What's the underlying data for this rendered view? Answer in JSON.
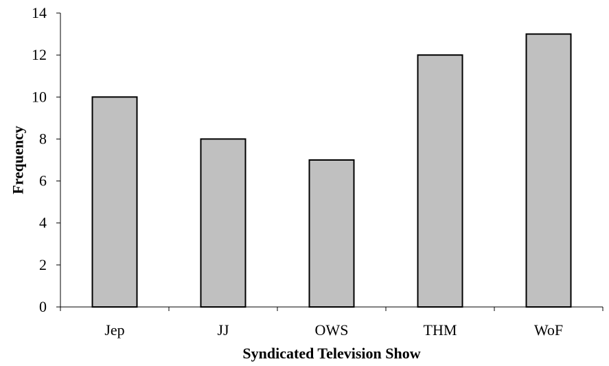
{
  "chart_data": {
    "type": "bar",
    "title": "",
    "xlabel": "Syndicated Television Show",
    "ylabel": "Frequency",
    "categories": [
      "Jep",
      "JJ",
      "OWS",
      "THM",
      "WoF"
    ],
    "series": [
      {
        "values": [
          10,
          8,
          7,
          12,
          13
        ]
      }
    ],
    "ylim": [
      0,
      14
    ],
    "yticks": [
      0,
      2,
      4,
      6,
      8,
      10,
      12,
      14
    ],
    "ytick_labels": [
      "0",
      "2",
      "4",
      "6",
      "8",
      "10",
      "12",
      "14"
    ],
    "grid": false,
    "legend": "none",
    "colors": {
      "bar_fill": "#c0c0c0",
      "bar_stroke": "#000000",
      "axis": "#000000"
    }
  }
}
